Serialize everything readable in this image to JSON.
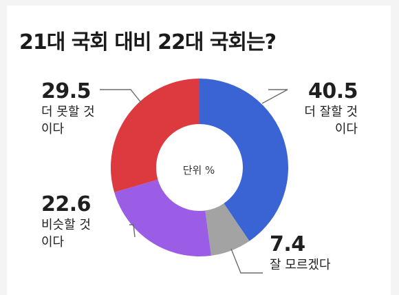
{
  "chart_data": {
    "type": "pie",
    "title": "21대 국회 대비 22대 국회는?",
    "unit_label": "단위 %",
    "slices": [
      {
        "value": 40.5,
        "value_label": "40.5",
        "label_line1": "더 잘할 것",
        "label_line2": "이다",
        "color": "#3a63d4"
      },
      {
        "value": 7.4,
        "value_label": "7.4",
        "label_line1": "잘 모르겠다",
        "label_line2": "",
        "color": "#a3a3a3"
      },
      {
        "value": 22.6,
        "value_label": "22.6",
        "label_line1": "비슷할 것",
        "label_line2": "이다",
        "color": "#9b5de5"
      },
      {
        "value": 29.5,
        "value_label": "29.5",
        "label_line1": "더 못할 것",
        "label_line2": "이다",
        "color": "#dc3a3e"
      }
    ]
  }
}
